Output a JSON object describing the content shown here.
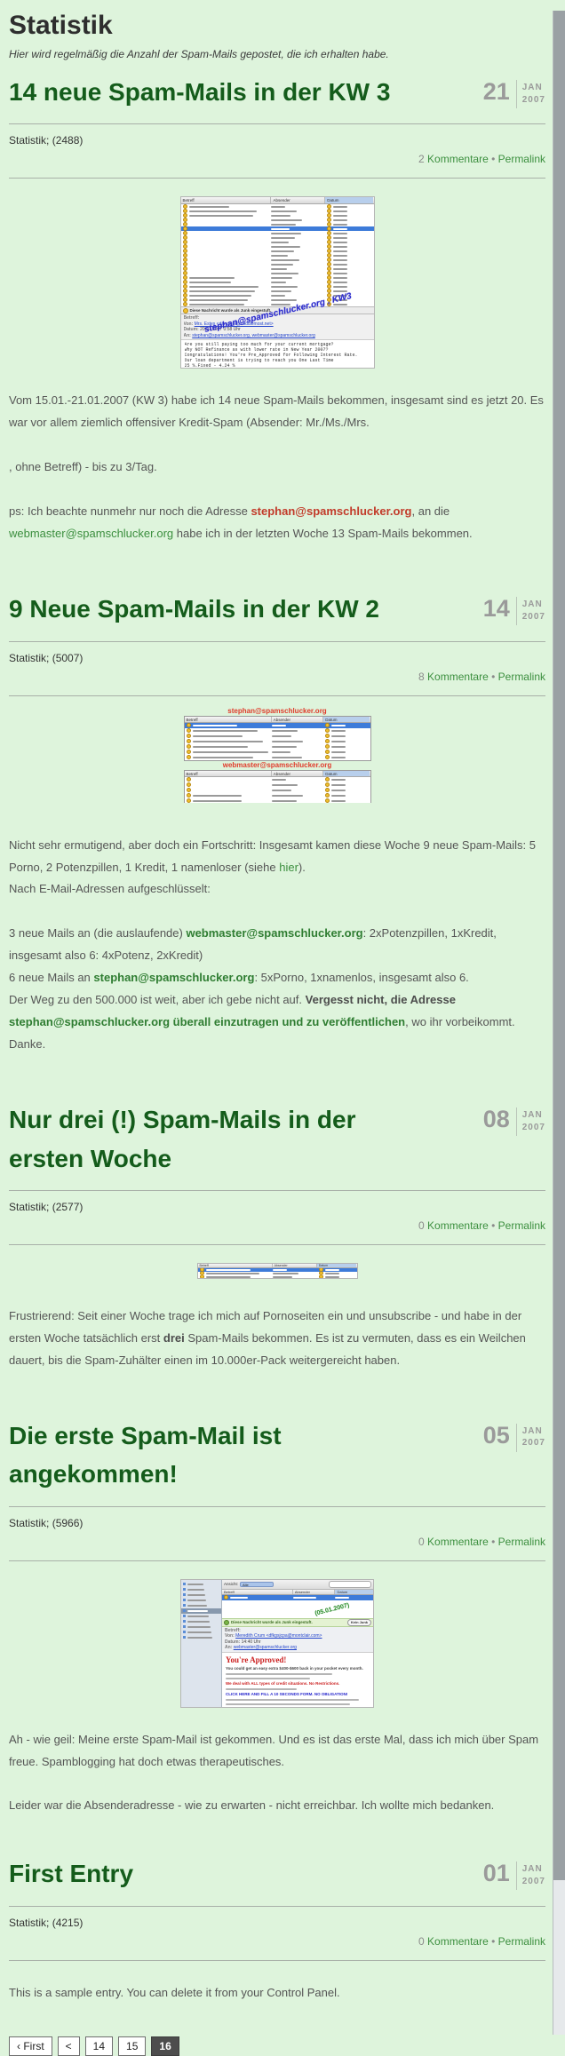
{
  "page": {
    "title": "Statistik",
    "subtitle": "Hier wird regelmäßig die Anzahl der Spam-Mails gepostet, die ich erhalten habe."
  },
  "labels": {
    "kommentare": "Kommentare",
    "permalink": "Permalink",
    "separator": "•"
  },
  "entries": [
    {
      "title": "14 neue Spam-Mails in der KW 3",
      "day": "21",
      "month": "JAN",
      "year": "2007",
      "category": "Statistik;",
      "category_count": "(2488)",
      "comments": "2",
      "image": {
        "columns": [
          "Betreff",
          "Absender",
          "Datum"
        ],
        "list": {
          "rows": 23,
          "selected": 5
        },
        "junk_banner": "Diese Nachricht wurde als Junk eingestuft.",
        "fields": {
          "betreff": "Betreff:",
          "von": "Von:",
          "von_value": "Mrs. Estes <daruusel@middlemost.net>",
          "datum": "Datum:",
          "datum_value": "20.01.2007 0:58 Uhr",
          "an": "An:",
          "an_value": "stephan@spamschlucker.org, webmaster@spamschlucker.org"
        },
        "body_lines": [
          "Are you still paying too much for your current mortgage?",
          "Why NOT Refinance as with lower rate in New Year 2007?",
          "Congratulations! You're Pre_Approved for Following Interest Rate.",
          "Our loan department is trying to reach you One Last Time",
          "25 %.Fixed  -  4.24 %",
          "You qualify for up to $379,000 for a monthly"
        ],
        "overlay": "stephan@spamschlucker.org , KW3"
      },
      "paragraphs": [
        {
          "gap": false,
          "segs": [
            {
              "t": "Vom 15.01.-21.01.2007 (KW 3) habe ich 14 neue Spam-Mails bekommen, insgesamt sind es jetzt 20. Es war vor allem ziemlich offensiver Kredit-Spam (Absender: Mr./Ms./Mrs."
            }
          ]
        },
        {
          "gap": true,
          "segs": [
            {
              "t": ", ohne Betreff) - bis zu 3/Tag."
            }
          ]
        },
        {
          "gap": true,
          "segs": [
            {
              "t": "ps: Ich beachte nunmehr nur noch die Adresse "
            },
            {
              "t": "stephan@spamschlucker.org",
              "s": "red"
            },
            {
              "t": ", an die "
            },
            {
              "t": "webmaster@spamschlucker.org",
              "s": "green"
            },
            {
              "t": " habe ich in der letzten Woche 13 Spam-Mails bekommen."
            }
          ]
        }
      ]
    },
    {
      "title": "9 Neue Spam-Mails in der KW 2",
      "day": "14",
      "month": "JAN",
      "year": "2007",
      "category": "Statistik;",
      "category_count": "(5007)",
      "comments": "8",
      "image": {
        "caption1": "stephan@spamschlucker.org",
        "caption2": "webmaster@spamschlucker.org",
        "columns": [
          "Betreff",
          "Absender",
          "Datum"
        ],
        "tables": [
          {
            "rows": 7,
            "selected": 0,
            "subjects": "all"
          },
          {
            "rows": 6,
            "selected": -1,
            "subjects": "partial"
          }
        ]
      },
      "paragraphs": [
        {
          "gap": false,
          "segs": [
            {
              "t": "Nicht sehr ermutigend, aber doch ein Fortschritt: Insgesamt kamen diese Woche 9 neue Spam-Mails: 5 Porno, 2 Potenzpillen, 1 Kredit, 1 namenloser (siehe "
            },
            {
              "t": "hier",
              "s": "green"
            },
            {
              "t": ")."
            }
          ]
        },
        {
          "gap": false,
          "segs": [
            {
              "t": "Nach E-Mail-Adressen aufgeschlüsselt:"
            }
          ]
        },
        {
          "gap": true,
          "segs": [
            {
              "t": "3 neue Mails an (die auslaufende) "
            },
            {
              "t": "webmaster@spamschlucker.org",
              "s": "greenb"
            },
            {
              "t": ": 2xPotenzpillen, 1xKredit, insgesamt also 6: 4xPotenz, 2xKredit)"
            }
          ]
        },
        {
          "gap": false,
          "segs": [
            {
              "t": "6 neue Mails an "
            },
            {
              "t": "stephan@spamschlucker.org",
              "s": "greenb"
            },
            {
              "t": ": 5xPorno, 1xnamenlos, insgesamt also 6."
            }
          ]
        },
        {
          "gap": false,
          "segs": [
            {
              "t": "Der Weg zu den 500.000 ist weit, aber ich gebe nicht auf. "
            },
            {
              "t": "Vergesst nicht, die Adresse ",
              "s": "bold"
            },
            {
              "t": "stephan@spamschlucker.org",
              "s": "greenb"
            },
            {
              "t": " überall einzutragen und zu veröffentlichen",
              "s": "greenb"
            },
            {
              "t": ", wo ihr vorbeikommt. Danke."
            }
          ]
        }
      ]
    },
    {
      "title": "Nur drei (!) Spam-Mails in der ersten Woche",
      "day": "08",
      "month": "JAN",
      "year": "2007",
      "category": "Statistik;",
      "category_count": "(2577)",
      "comments": "0",
      "image": {
        "columns": [
          "Betreff",
          "Absender",
          "Datum"
        ],
        "list": {
          "rows": 3,
          "selected": 0
        }
      },
      "paragraphs": [
        {
          "gap": false,
          "segs": [
            {
              "t": "Frustrierend: Seit einer Woche trage ich mich auf Pornoseiten ein und unsubscribe - und habe in der ersten Woche tatsächlich erst "
            },
            {
              "t": "drei",
              "s": "bold"
            },
            {
              "t": " Spam-Mails bekommen. Es ist zu vermuten, dass es ein Weilchen dauert, bis die Spam-Zuhälter einen im 10.000er-Pack weitergereicht haben."
            }
          ]
        }
      ]
    },
    {
      "title": "Die erste Spam-Mail ist angekommen!",
      "day": "05",
      "month": "JAN",
      "year": "2007",
      "category": "Statistik;",
      "category_count": "(5966)",
      "comments": "0",
      "image": {
        "columns": [
          "Betreff",
          "Absender",
          "Datum"
        ],
        "sidebar": {
          "rows": 11,
          "selected": 5
        },
        "toolbar_label": "Ansicht:",
        "toolbar_value": "Alle",
        "stamp": "(05.01.2007)",
        "junk_banner": "Diese Nachricht wurde als Junk eingestuft.",
        "junk_button": "Kein Junk",
        "fields": {
          "betreff": "Betreff:",
          "von": "Von:",
          "von_value": "Meredith Crum <dfkgsjcpa@montclair.com>",
          "datum": "Datum:",
          "datum_value": "14:40 Uhr",
          "an": "An:",
          "an_value": "webmaster@spamschlucker.org"
        },
        "headline": "You're Approved!",
        "lead": "You could get an easy extra $400-$600 back in your pocket every month.",
        "red_line": "We deal with ALL types of credit situations. No Restrictions.",
        "link_line": "CLICK HERE AND FILL A 10 SECONDS FORM. NO OBLIGATION!"
      },
      "paragraphs": [
        {
          "gap": false,
          "segs": [
            {
              "t": "Ah - wie geil: Meine erste Spam-Mail ist gekommen. Und es ist das erste Mal, dass ich mich über Spam freue. Spamblogging hat doch etwas therapeutisches."
            }
          ]
        },
        {
          "gap": true,
          "segs": [
            {
              "t": "Leider war die Absenderadresse - wie zu erwarten - nicht erreichbar. Ich wollte mich bedanken."
            }
          ]
        }
      ]
    },
    {
      "title": "First Entry",
      "day": "01",
      "month": "JAN",
      "year": "2007",
      "category": "Statistik;",
      "category_count": "(4215)",
      "comments": "0",
      "paragraphs": [
        {
          "gap": false,
          "segs": [
            {
              "t": "This is a sample entry. You can delete it from your Control Panel."
            }
          ]
        }
      ]
    }
  ],
  "pagination": {
    "items": [
      {
        "label": "‹ First",
        "active": false
      },
      {
        "label": "<",
        "active": false
      },
      {
        "label": "14",
        "active": false
      },
      {
        "label": "15",
        "active": false
      },
      {
        "label": "16",
        "active": true
      }
    ]
  }
}
